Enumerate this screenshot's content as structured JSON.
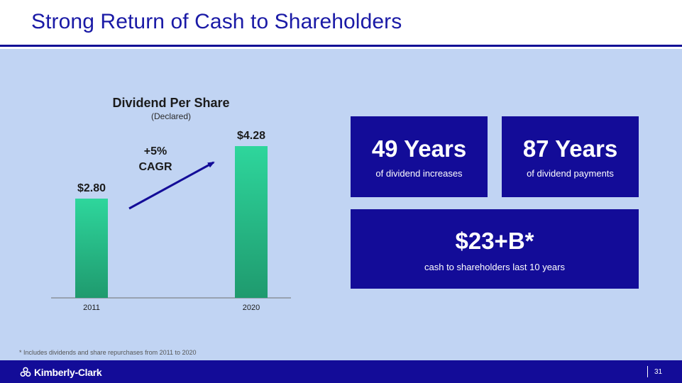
{
  "slide": {
    "title": "Strong Return of Cash to Shareholders",
    "footnote": "* Includes dividends and share repurchases from 2011 to 2020",
    "page_number": "31"
  },
  "brand": {
    "logo_text": "Kimberly-Clark",
    "navy": "#130c98",
    "title_blue": "#1a1aa6",
    "background": "#c1d4f3",
    "bar_top": "#2ed69c",
    "bar_bottom": "#1f9a6e"
  },
  "chart_data": {
    "type": "bar",
    "title": "Dividend Per Share",
    "subtitle": "(Declared)",
    "categories": [
      "2011",
      "2020"
    ],
    "values": [
      2.8,
      4.28
    ],
    "value_labels": [
      "$2.80",
      "$4.28"
    ],
    "ylim": [
      0,
      4.8
    ],
    "xlabel": "",
    "ylabel": "",
    "annotation": {
      "line1": "+5%",
      "line2": "CAGR"
    }
  },
  "stats": [
    {
      "value": "49 Years",
      "label": "of dividend increases"
    },
    {
      "value": "87 Years",
      "label": "of dividend payments"
    },
    {
      "value": "$23+B*",
      "label": "cash to shareholders last 10 years"
    }
  ]
}
